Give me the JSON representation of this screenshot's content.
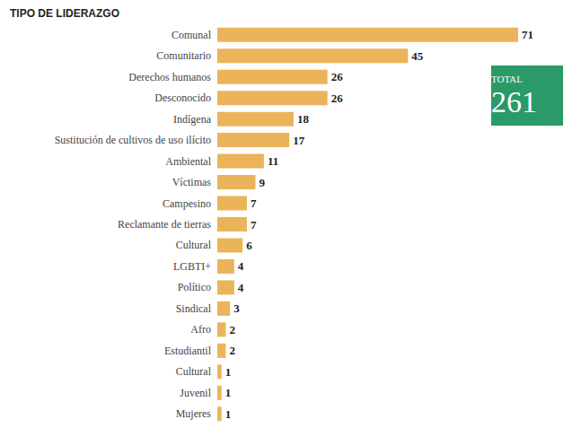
{
  "chart_data": {
    "type": "bar",
    "title": "TIPO DE LIDERAZGO",
    "categories": [
      "Comunal",
      "Comunitario",
      "Derechos humanos",
      "Desconocido",
      "Indígena",
      "Sustitución de cultivos de uso ilícito",
      "Ambiental",
      "Víctimas",
      "Campesino",
      "Reclamante de tierras",
      "Cultural",
      "LGBTI+",
      "Político",
      "Sindical",
      "Afro",
      "Estudiantil",
      "Cultural",
      "Juvenil",
      "Mujeres"
    ],
    "values": [
      71,
      45,
      26,
      26,
      18,
      17,
      11,
      9,
      7,
      7,
      6,
      4,
      4,
      3,
      2,
      2,
      1,
      1,
      1
    ],
    "color": "#ebb45b",
    "orientation": "horizontal",
    "data_labels": true,
    "tick_labels": "y",
    "grid": false,
    "xlim": [
      0,
      71
    ],
    "annotation": {
      "label": "TOTAL",
      "value": 261
    }
  }
}
